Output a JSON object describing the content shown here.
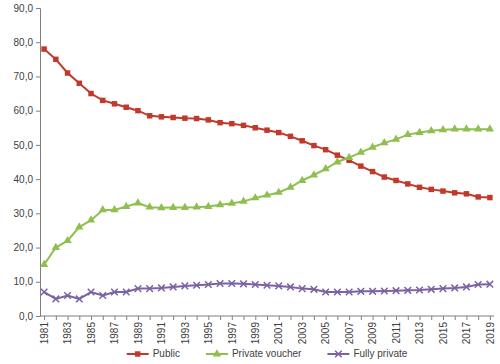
{
  "chart_data": {
    "type": "line",
    "categories": [
      "1981",
      null,
      "1983",
      null,
      "1985",
      null,
      "1987",
      null,
      "1989",
      null,
      "1991",
      null,
      "1993",
      null,
      "1995",
      null,
      "1997",
      null,
      "1999",
      null,
      "2001",
      null,
      "2003",
      null,
      "2005",
      null,
      "2007",
      null,
      "2009",
      null,
      "2011",
      null,
      "2013",
      null,
      "2015",
      null,
      "2017",
      null,
      "2019"
    ],
    "series": [
      {
        "name": "Public",
        "color": "#c0392b",
        "marker": "square",
        "values": [
          78,
          75,
          71,
          68,
          65,
          63,
          62,
          61,
          60,
          58.5,
          58.2,
          58,
          57.8,
          57.7,
          57.3,
          56.5,
          56.2,
          55.7,
          55,
          54.3,
          53.6,
          52.5,
          51.2,
          49.8,
          48.6,
          47,
          45.5,
          43.8,
          42.2,
          40.6,
          39.6,
          38.6,
          37.6,
          37,
          36.5,
          36,
          35.7,
          34.8,
          34.6
        ]
      },
      {
        "name": "Private voucher",
        "color": "#8fbf4f",
        "marker": "triangle",
        "values": [
          15,
          20,
          22,
          26,
          28,
          31,
          31,
          32,
          33,
          31.8,
          31.6,
          31.7,
          31.7,
          31.8,
          32,
          32.5,
          32.9,
          33.5,
          34.5,
          35.3,
          36.1,
          37.6,
          39.6,
          41.2,
          43,
          45,
          46.3,
          47.8,
          49.3,
          50.6,
          51.6,
          53,
          53.6,
          54.1,
          54.4,
          54.6,
          54.6,
          54.6,
          54.6
        ]
      },
      {
        "name": "Fully private",
        "color": "#7b62a3",
        "marker": "x",
        "values": [
          7,
          5,
          6,
          5,
          7,
          6,
          7,
          7,
          8,
          8,
          8.2,
          8.5,
          8.8,
          9,
          9.2,
          9.5,
          9.5,
          9.4,
          9.2,
          9,
          8.8,
          8.5,
          8,
          7.8,
          7,
          7,
          7,
          7.2,
          7.2,
          7.3,
          7.4,
          7.5,
          7.6,
          7.8,
          8,
          8.2,
          8.5,
          9.2,
          9.3
        ]
      }
    ],
    "ylim": [
      0,
      90
    ],
    "yticks": [
      {
        "value": 0,
        "label": "0,0"
      },
      {
        "value": 10,
        "label": "10,0"
      },
      {
        "value": 20,
        "label": "20,0"
      },
      {
        "value": 30,
        "label": "30,0"
      },
      {
        "value": 40,
        "label": "40,0"
      },
      {
        "value": 50,
        "label": "50,0"
      },
      {
        "value": 60,
        "label": "60,0"
      },
      {
        "value": 70,
        "label": "70,0"
      },
      {
        "value": 80,
        "label": "80,0"
      },
      {
        "value": 90,
        "label": "90,0"
      }
    ],
    "grid": false,
    "legend": "bottom"
  }
}
